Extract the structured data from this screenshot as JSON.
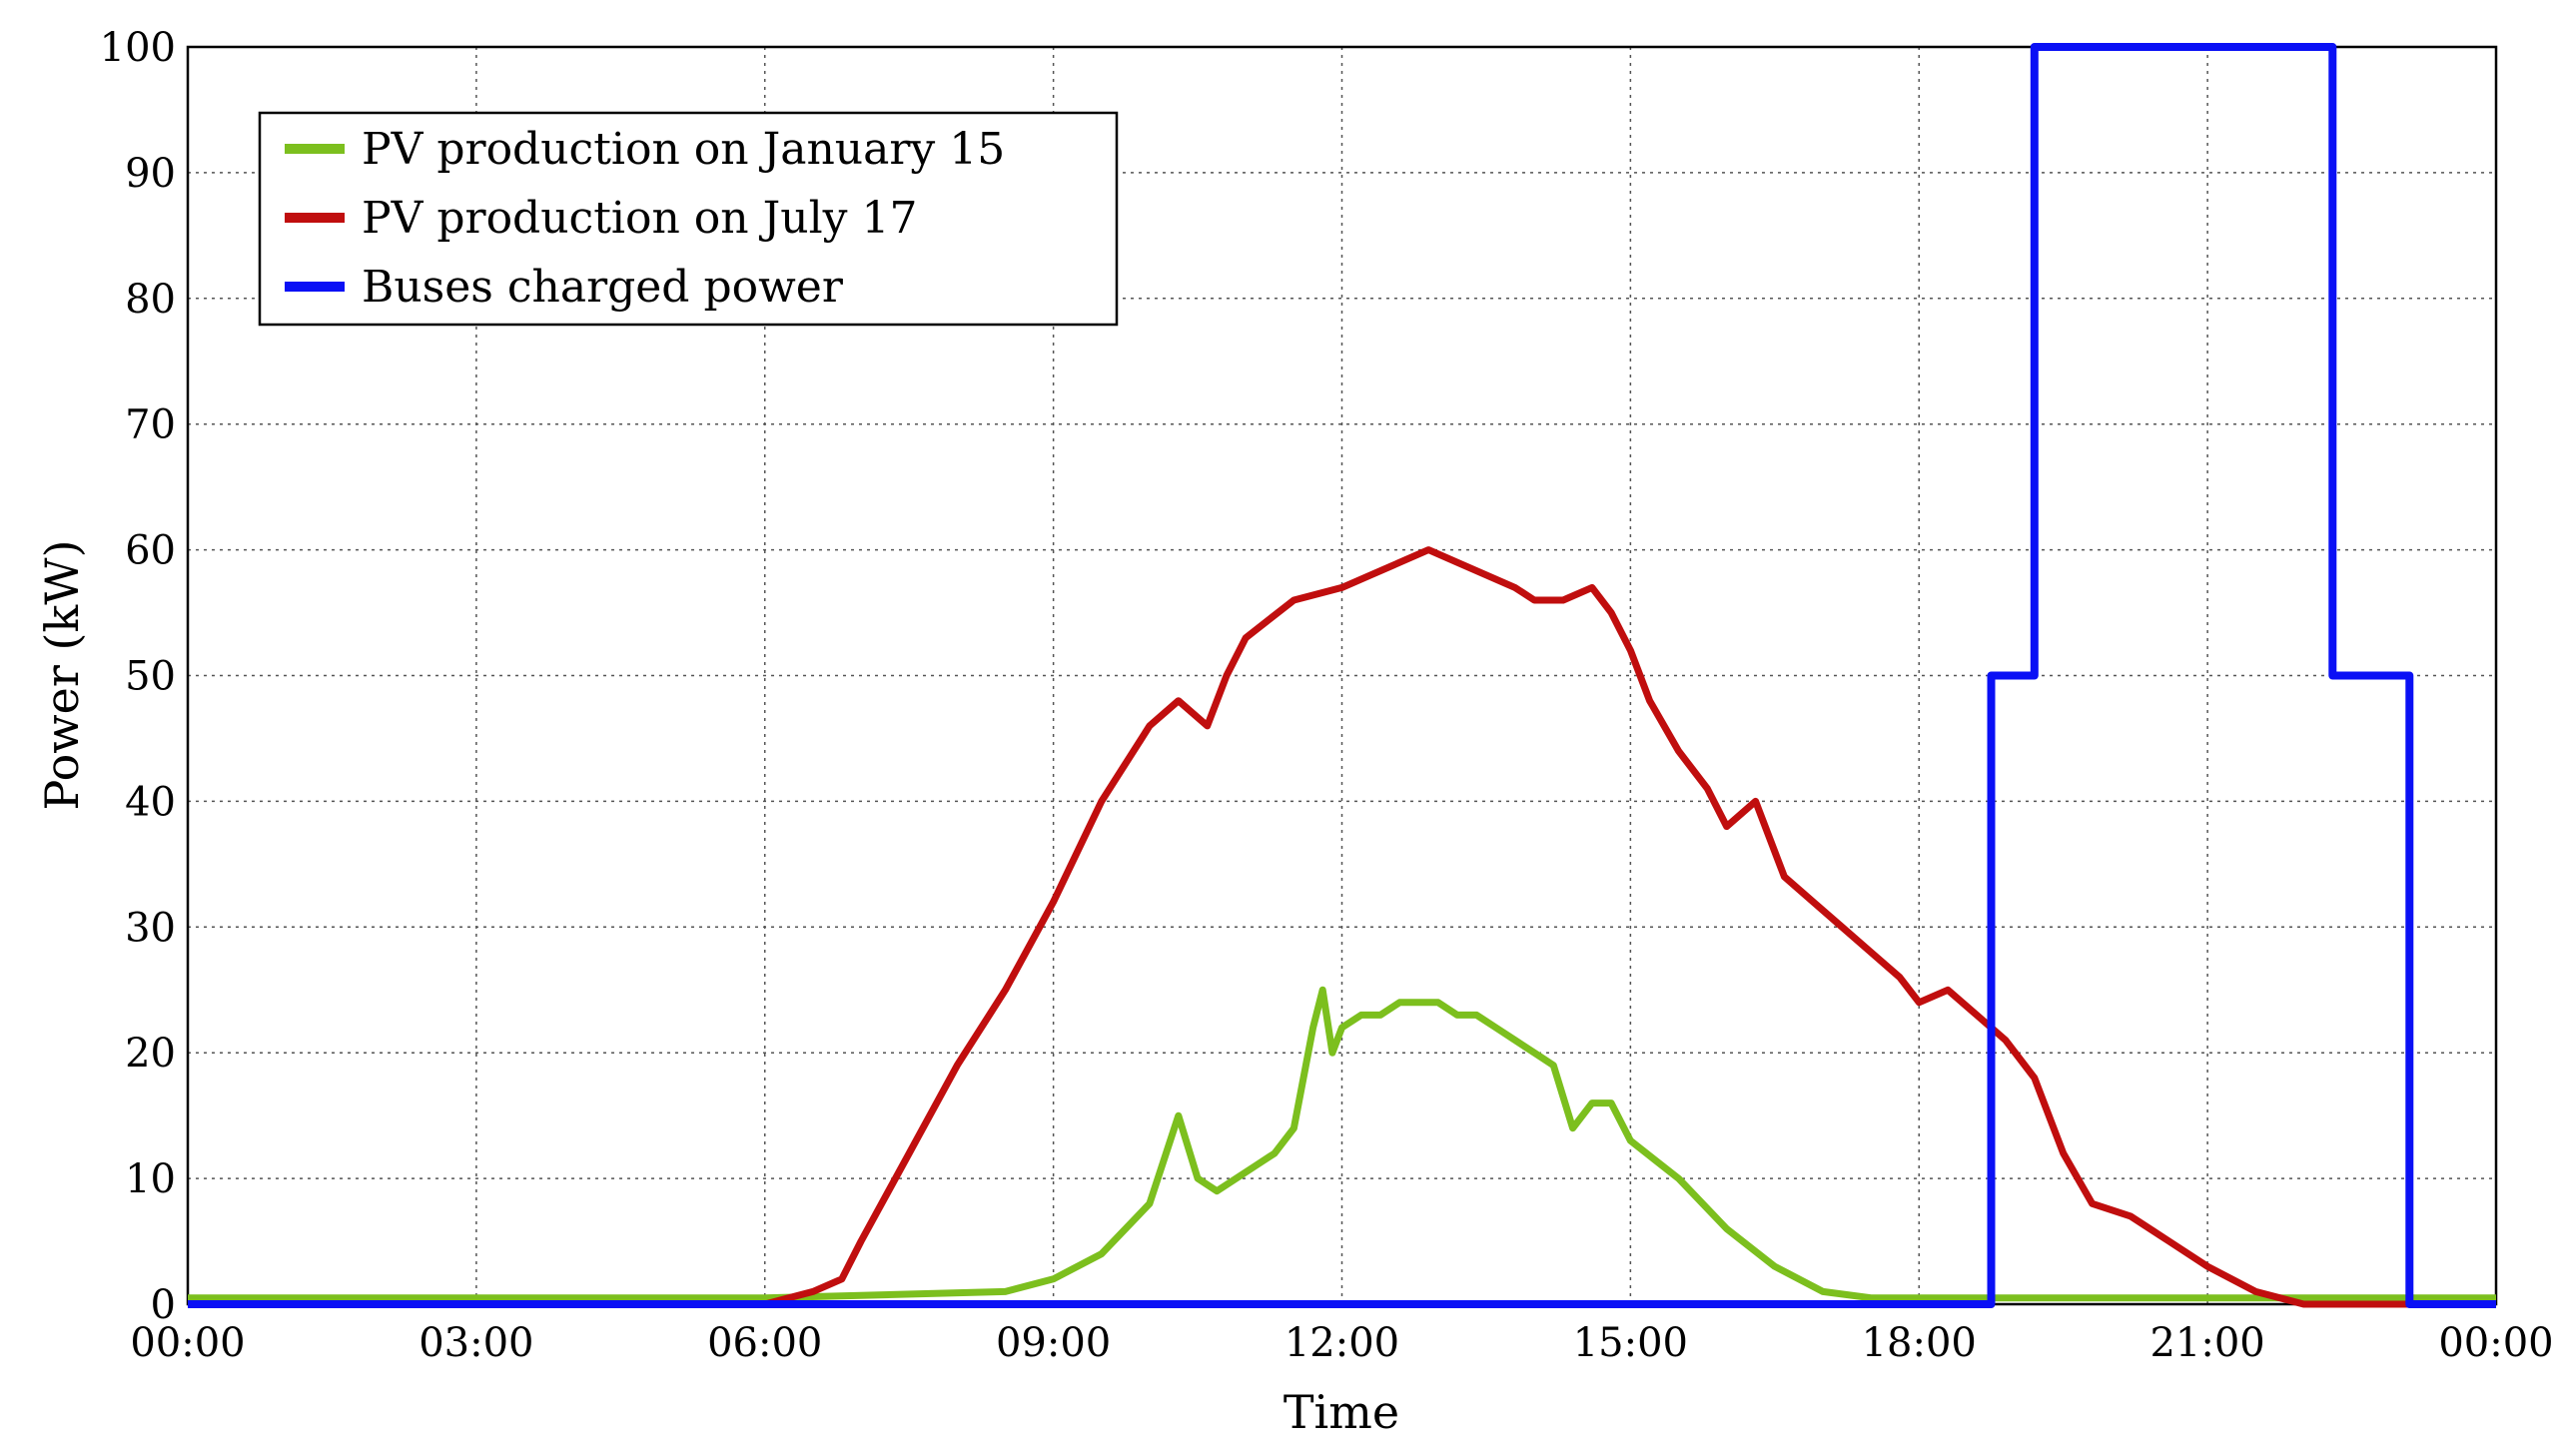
{
  "chart_data": {
    "type": "line",
    "xlabel": "Time",
    "ylabel": "Power (kW)",
    "xlim": [
      0,
      24
    ],
    "ylim": [
      0,
      100
    ],
    "x_ticks": [
      {
        "h": 0,
        "label": "00:00"
      },
      {
        "h": 3,
        "label": "03:00"
      },
      {
        "h": 6,
        "label": "06:00"
      },
      {
        "h": 9,
        "label": "09:00"
      },
      {
        "h": 12,
        "label": "12:00"
      },
      {
        "h": 15,
        "label": "15:00"
      },
      {
        "h": 18,
        "label": "18:00"
      },
      {
        "h": 21,
        "label": "21:00"
      },
      {
        "h": 24,
        "label": "00:00"
      }
    ],
    "y_ticks": [
      0,
      10,
      20,
      30,
      40,
      50,
      60,
      70,
      80,
      90,
      100
    ],
    "grid": true,
    "legend_position": "top-left",
    "series": [
      {
        "name": "PV production on January 15",
        "color": "#7cbf1e",
        "x": [
          0,
          6,
          8.5,
          9,
          9.5,
          10,
          10.3,
          10.5,
          10.7,
          10.9,
          11.1,
          11.3,
          11.5,
          11.7,
          11.8,
          11.9,
          12,
          12.2,
          12.4,
          12.6,
          12.8,
          13,
          13.2,
          13.4,
          13.6,
          13.8,
          14,
          14.2,
          14.4,
          14.6,
          14.8,
          15,
          15.5,
          16,
          16.5,
          17,
          17.5,
          18,
          24
        ],
        "y": [
          0.5,
          0.5,
          1,
          2,
          4,
          8,
          15,
          10,
          9,
          10,
          11,
          12,
          14,
          22,
          25,
          20,
          22,
          23,
          23,
          24,
          24,
          24,
          23,
          23,
          22,
          21,
          20,
          19,
          14,
          16,
          16,
          13,
          10,
          6,
          3,
          1,
          0.5,
          0.5,
          0.5
        ]
      },
      {
        "name": "PV production on July 17",
        "color": "#c00e0e",
        "x": [
          0,
          6,
          6.5,
          6.8,
          7,
          7.5,
          8,
          8.5,
          9,
          9.5,
          10,
          10.3,
          10.6,
          10.8,
          11,
          11.5,
          12,
          12.3,
          12.6,
          12.9,
          13.2,
          13.5,
          13.8,
          14,
          14.3,
          14.6,
          14.8,
          15,
          15.2,
          15.5,
          15.8,
          16,
          16.3,
          16.6,
          16.9,
          17.2,
          17.5,
          17.8,
          18,
          18.3,
          18.6,
          18.9,
          19.2,
          19.5,
          19.8,
          20.2,
          20.6,
          21,
          21.5,
          22,
          24
        ],
        "y": [
          0,
          0,
          1,
          2,
          5,
          12,
          19,
          25,
          32,
          40,
          46,
          48,
          46,
          50,
          53,
          56,
          57,
          58,
          59,
          60,
          59,
          58,
          57,
          56,
          56,
          57,
          55,
          52,
          48,
          44,
          41,
          38,
          40,
          34,
          32,
          30,
          28,
          26,
          24,
          25,
          23,
          21,
          18,
          12,
          8,
          7,
          5,
          3,
          1,
          0,
          0
        ]
      },
      {
        "name": "Buses charged power",
        "color": "#0a10f5",
        "x": [
          0,
          18.75,
          18.75,
          19.2,
          19.2,
          22.3,
          22.3,
          23.1,
          23.1,
          24
        ],
        "y": [
          0,
          0,
          50,
          50,
          100,
          100,
          50,
          50,
          0,
          0
        ]
      }
    ]
  }
}
